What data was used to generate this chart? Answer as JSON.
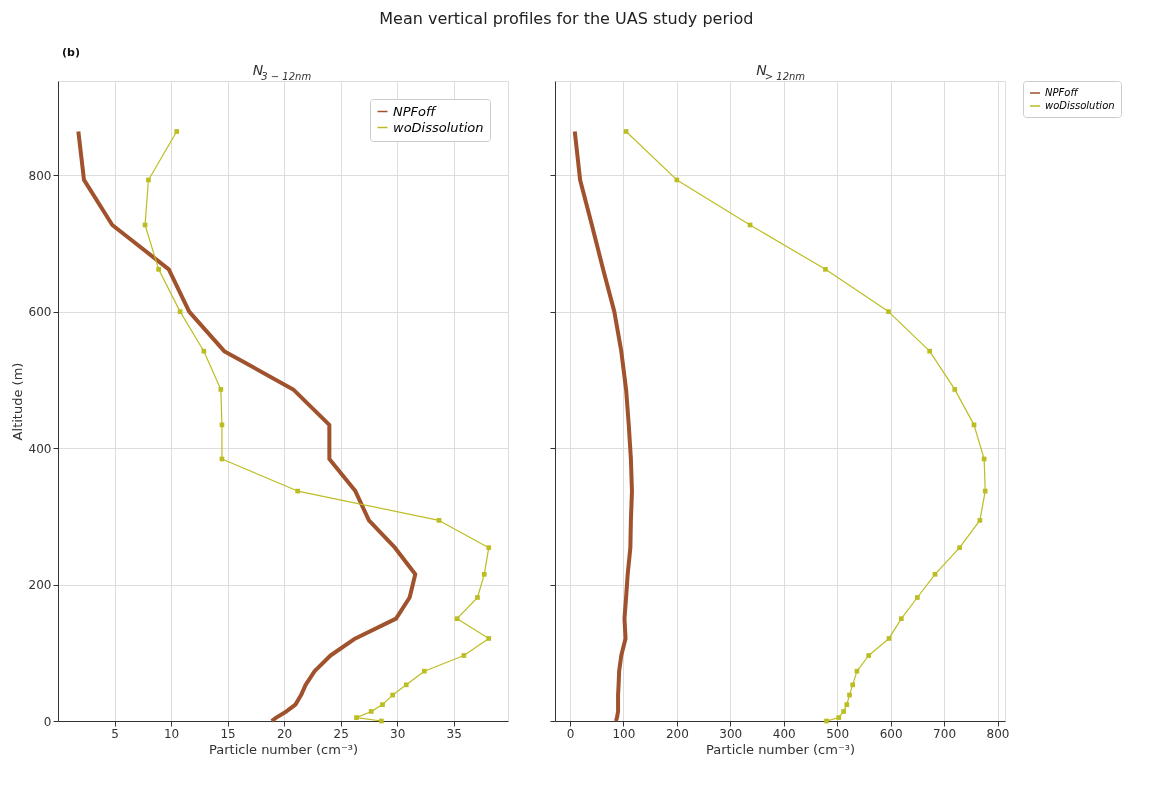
{
  "chart_data": [
    {
      "type": "line",
      "title": "Mean vertical profiles for the UAS study period",
      "subtitle": "N$_{3 − 12nm}$",
      "xlabel": "Particle number (cm⁻³)",
      "ylabel": "Altitude (m)",
      "annotations": [
        "(b)"
      ],
      "xlim": [
        0,
        39.8
      ],
      "xticks": [
        5,
        10,
        15,
        20,
        25,
        30,
        35
      ],
      "ylim": [
        0,
        938
      ],
      "yticks": [
        0,
        200,
        400,
        600,
        800
      ],
      "grid": true,
      "legend": "top right",
      "series": [
        {
          "name": "NPFoff",
          "color": "#a0522d",
          "marker": "none",
          "x": [
            1.8,
            2.3,
            4.8,
            9.8,
            11.6,
            14.7,
            20.8,
            24.0,
            24.0,
            26.3,
            27.5,
            29.8,
            31.6,
            31.1,
            29.9,
            26.3,
            24.1,
            22.7,
            21.9,
            21.5,
            21.0,
            20.2,
            19.3,
            18.9
          ],
          "values": [
            864,
            793,
            727,
            662,
            600,
            542,
            486,
            434,
            384,
            337,
            294,
            254,
            215,
            181,
            150,
            121,
            96,
            73,
            53,
            38,
            24,
            14,
            5,
            0
          ]
        },
        {
          "name": "woDissolution",
          "color": "#bcbd22",
          "marker": "square",
          "x": [
            10.5,
            8.0,
            7.7,
            8.9,
            10.8,
            12.9,
            14.4,
            14.5,
            14.5,
            21.2,
            33.7,
            38.1,
            37.7,
            37.1,
            35.3,
            38.1,
            35.9,
            32.4,
            30.8,
            29.6,
            28.7,
            27.7,
            26.4,
            28.6
          ],
          "values": [
            864,
            793,
            727,
            662,
            600,
            542,
            486,
            434,
            384,
            337,
            294,
            254,
            215,
            181,
            150,
            121,
            96,
            73,
            53,
            38,
            24,
            14,
            5,
            0
          ]
        }
      ]
    },
    {
      "type": "line",
      "subtitle": "N$_{> 12nm}$",
      "xlabel": "Particle number (cm⁻³)",
      "xlim": [
        -28,
        814
      ],
      "xticks": [
        0,
        100,
        200,
        300,
        400,
        500,
        600,
        700,
        800
      ],
      "ylim": [
        0,
        938
      ],
      "yticks": [
        0,
        200,
        400,
        600,
        800
      ],
      "tick_labels": "x",
      "grid": true,
      "legend": "right",
      "series": [
        {
          "name": "NPFoff",
          "color": "#a0522d",
          "marker": "none",
          "x": [
            9,
            19,
            41,
            62,
            83,
            96,
            105,
            110,
            114,
            116,
            114,
            113,
            108,
            105,
            102,
            104,
            96,
            92,
            91,
            90,
            90,
            90,
            88,
            86
          ],
          "values": [
            864,
            793,
            727,
            662,
            600,
            542,
            486,
            434,
            384,
            337,
            294,
            254,
            215,
            181,
            150,
            121,
            96,
            73,
            53,
            38,
            24,
            14,
            5,
            0
          ]
        },
        {
          "name": "woDissolution",
          "color": "#bcbd22",
          "marker": "square",
          "x": [
            105,
            200,
            337,
            478,
            596,
            673,
            720,
            756,
            775,
            777,
            767,
            729,
            683,
            650,
            620,
            597,
            559,
            537,
            529,
            523,
            518,
            512,
            503,
            480
          ],
          "values": [
            864,
            793,
            727,
            662,
            600,
            542,
            486,
            434,
            384,
            337,
            294,
            254,
            215,
            181,
            150,
            121,
            96,
            73,
            53,
            38,
            24,
            14,
            5,
            0
          ]
        }
      ]
    }
  ]
}
